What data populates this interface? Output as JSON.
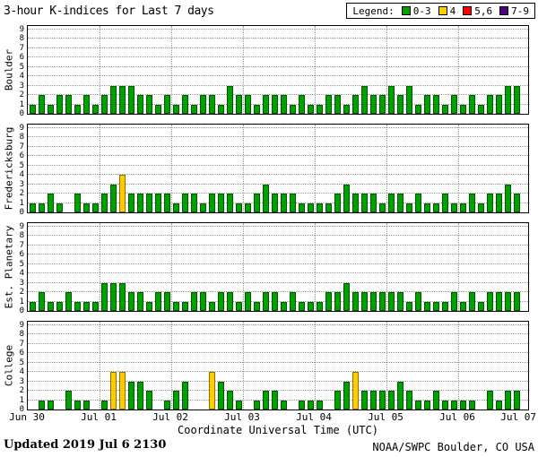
{
  "title": "3-hour K-indices for Last 7 days",
  "legend": {
    "label": "Legend:",
    "items": [
      {
        "label": "0-3",
        "color": "#00A000"
      },
      {
        "label": "4",
        "color": "#FFCC00"
      },
      {
        "label": "5,6",
        "color": "#FF0000"
      },
      {
        "label": "7-9",
        "color": "#4B0082"
      }
    ]
  },
  "x_axis": {
    "title": "Coordinate Universal Time (UTC)",
    "tick_labels": [
      "Jun 30",
      "Jul 01",
      "Jul 02",
      "Jul 03",
      "Jul 04",
      "Jul 05",
      "Jul 06",
      "Jul 07"
    ]
  },
  "y_axis": {
    "ticks": [
      0,
      1,
      2,
      3,
      4,
      5,
      6,
      7,
      8,
      9
    ]
  },
  "footer": {
    "updated": "Updated 2019 Jul 6 2130",
    "credit": "NOAA/SWPC Boulder, CO USA"
  },
  "chart_data": {
    "type": "bar",
    "title": "3-hour K-indices for Last 7 days",
    "xlabel": "Coordinate Universal Time (UTC)",
    "ylim": [
      0,
      9
    ],
    "grid": true,
    "bars_per_day": 8,
    "x_boundary_labels": [
      "Jun 30",
      "Jul 01",
      "Jul 02",
      "Jul 03",
      "Jul 04",
      "Jul 05",
      "Jul 06",
      "Jul 07"
    ],
    "color_rule": {
      "0-3": "#00A000",
      "4": "#FFCC00",
      "5,6": "#FF0000",
      "7-9": "#4B0082"
    },
    "panels": [
      {
        "station": "Boulder",
        "values": [
          1,
          2,
          1,
          2,
          2,
          1,
          2,
          1,
          2,
          3,
          3,
          3,
          2,
          2,
          1,
          2,
          1,
          2,
          1,
          2,
          2,
          1,
          3,
          2,
          2,
          1,
          2,
          2,
          2,
          1,
          2,
          1,
          1,
          2,
          2,
          1,
          2,
          3,
          2,
          2,
          3,
          2,
          3,
          1,
          2,
          2,
          1,
          2,
          1,
          2,
          1,
          2,
          2,
          3,
          3
        ]
      },
      {
        "station": "Fredericksburg",
        "values": [
          1,
          1,
          2,
          1,
          0,
          2,
          1,
          1,
          2,
          3,
          4,
          2,
          2,
          2,
          2,
          2,
          1,
          2,
          2,
          1,
          2,
          2,
          2,
          1,
          1,
          2,
          3,
          2,
          2,
          2,
          1,
          1,
          1,
          1,
          2,
          3,
          2,
          2,
          2,
          1,
          2,
          2,
          1,
          2,
          1,
          1,
          2,
          1,
          1,
          2,
          1,
          2,
          2,
          3,
          2
        ]
      },
      {
        "station": "Est. Planetary",
        "values": [
          1,
          2,
          1,
          1,
          2,
          1,
          1,
          1,
          3,
          3,
          3,
          2,
          2,
          1,
          2,
          2,
          1,
          1,
          2,
          2,
          1,
          2,
          2,
          1,
          2,
          1,
          2,
          2,
          1,
          2,
          1,
          1,
          1,
          2,
          2,
          3,
          2,
          2,
          2,
          2,
          2,
          2,
          1,
          2,
          1,
          1,
          1,
          2,
          1,
          2,
          1,
          2,
          2,
          2,
          2
        ]
      },
      {
        "station": "College",
        "values": [
          0,
          1,
          1,
          0,
          2,
          1,
          1,
          0,
          1,
          4,
          4,
          3,
          3,
          2,
          0,
          1,
          2,
          3,
          0,
          0,
          4,
          3,
          2,
          1,
          0,
          1,
          2,
          2,
          1,
          0,
          1,
          1,
          1,
          0,
          2,
          3,
          4,
          2,
          2,
          2,
          2,
          3,
          2,
          1,
          1,
          2,
          1,
          1,
          1,
          1,
          0,
          2,
          1,
          2,
          2
        ]
      }
    ]
  }
}
